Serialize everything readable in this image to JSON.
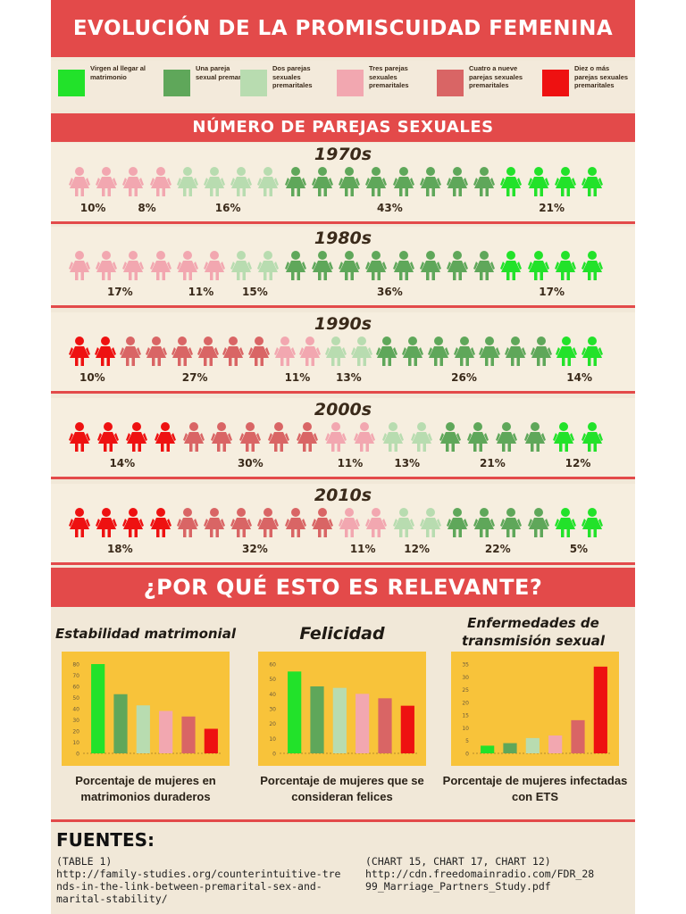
{
  "title": "EVOLUCIÓN DE LA PROMISCUIDAD FEMENINA",
  "legend": [
    {
      "label": "Virgen al llegar al matrimonio",
      "color": "#22e22a"
    },
    {
      "label": "Una pareja sexual premarital",
      "color": "#5fa75a"
    },
    {
      "label": "Dos parejas sexuales premaritales",
      "color": "#b8dcb0"
    },
    {
      "label": "Tres parejas sexuales premaritales",
      "color": "#f2a7b0"
    },
    {
      "label": "Cuatro a nueve parejas sexuales premaritales",
      "color": "#d96565"
    },
    {
      "label": "Diez o más parejas sexuales premaritales",
      "color": "#ee1111"
    }
  ],
  "count_banner": "NÚMERO DE PAREJAS SEXUALES",
  "decades": [
    {
      "label": "1970s",
      "groups": [
        {
          "category": 3,
          "figures": 2,
          "percent": "10%"
        },
        {
          "category": 3,
          "figures": 2,
          "percent": "8%"
        },
        {
          "category": 2,
          "figures": 4,
          "percent": "16%"
        },
        {
          "category": 1,
          "figures": 8,
          "percent": "43%"
        },
        {
          "category": 0,
          "figures": 4,
          "percent": "21%"
        }
      ]
    },
    {
      "label": "1980s",
      "groups": [
        {
          "category": 3,
          "figures": 4,
          "percent": "17%"
        },
        {
          "category": 3,
          "figures": 2,
          "percent": "11%"
        },
        {
          "category": 2,
          "figures": 2,
          "percent": "15%"
        },
        {
          "category": 1,
          "figures": 8,
          "percent": "36%"
        },
        {
          "category": 0,
          "figures": 4,
          "percent": "17%"
        }
      ]
    },
    {
      "label": "1990s",
      "groups": [
        {
          "category": 5,
          "figures": 2,
          "percent": "10%"
        },
        {
          "category": 4,
          "figures": 6,
          "percent": "27%"
        },
        {
          "category": 3,
          "figures": 2,
          "percent": "11%"
        },
        {
          "category": 2,
          "figures": 2,
          "percent": "13%"
        },
        {
          "category": 1,
          "figures": 7,
          "percent": "26%"
        },
        {
          "category": 0,
          "figures": 2,
          "percent": "14%"
        }
      ]
    },
    {
      "label": "2000s",
      "groups": [
        {
          "category": 5,
          "figures": 4,
          "percent": "14%"
        },
        {
          "category": 4,
          "figures": 5,
          "percent": "30%"
        },
        {
          "category": 3,
          "figures": 2,
          "percent": "11%"
        },
        {
          "category": 2,
          "figures": 2,
          "percent": "13%"
        },
        {
          "category": 1,
          "figures": 4,
          "percent": "21%"
        },
        {
          "category": 0,
          "figures": 2,
          "percent": "12%"
        }
      ]
    },
    {
      "label": "2010s",
      "groups": [
        {
          "category": 5,
          "figures": 4,
          "percent": "18%"
        },
        {
          "category": 4,
          "figures": 6,
          "percent": "32%"
        },
        {
          "category": 3,
          "figures": 2,
          "percent": "11%"
        },
        {
          "category": 2,
          "figures": 2,
          "percent": "12%"
        },
        {
          "category": 1,
          "figures": 4,
          "percent": "22%"
        },
        {
          "category": 0,
          "figures": 2,
          "percent": "5%"
        }
      ]
    }
  ],
  "why_banner": "¿POR QUÉ ESTO ES RELEVANTE?",
  "chart_data": [
    {
      "type": "bar",
      "title": "Estabilidad matrimonial",
      "xlabel": "",
      "ylabel": "",
      "caption": "Porcentaje de mujeres en matrimonios duraderos",
      "ylim": [
        0,
        80
      ],
      "yticks": [
        0,
        10,
        20,
        30,
        40,
        50,
        60,
        70,
        80
      ],
      "values": [
        80,
        53,
        43,
        38,
        33,
        22
      ]
    },
    {
      "type": "bar",
      "title": "Felicidad",
      "xlabel": "",
      "ylabel": "",
      "caption": "Porcentaje de mujeres que se consideran felices",
      "ylim": [
        0,
        60
      ],
      "yticks": [
        0,
        10,
        20,
        30,
        40,
        50,
        60
      ],
      "values": [
        55,
        45,
        44,
        40,
        37,
        32
      ]
    },
    {
      "type": "bar",
      "title": "Enfermedades de transmisión sexual",
      "xlabel": "",
      "ylabel": "",
      "caption": "Porcentaje de mujeres infectadas con ETS",
      "ylim": [
        0,
        35
      ],
      "yticks": [
        0,
        5,
        10,
        15,
        20,
        25,
        30,
        35
      ],
      "values": [
        3,
        4,
        6,
        7,
        13,
        34
      ]
    }
  ],
  "sources": {
    "title": "FUENTES:",
    "left_lines": [
      "(TABLE 1)",
      "http://family-studies.org/counterintuitive-tre",
      "nds-in-the-link-between-premarital-sex-and-",
      "marital-stability/"
    ],
    "right_lines": [
      "(CHART 15, CHART 17, CHART 12)",
      "http://cdn.freedomainradio.com/FDR_28",
      "99_Marriage_Partners_Study.pdf"
    ]
  }
}
